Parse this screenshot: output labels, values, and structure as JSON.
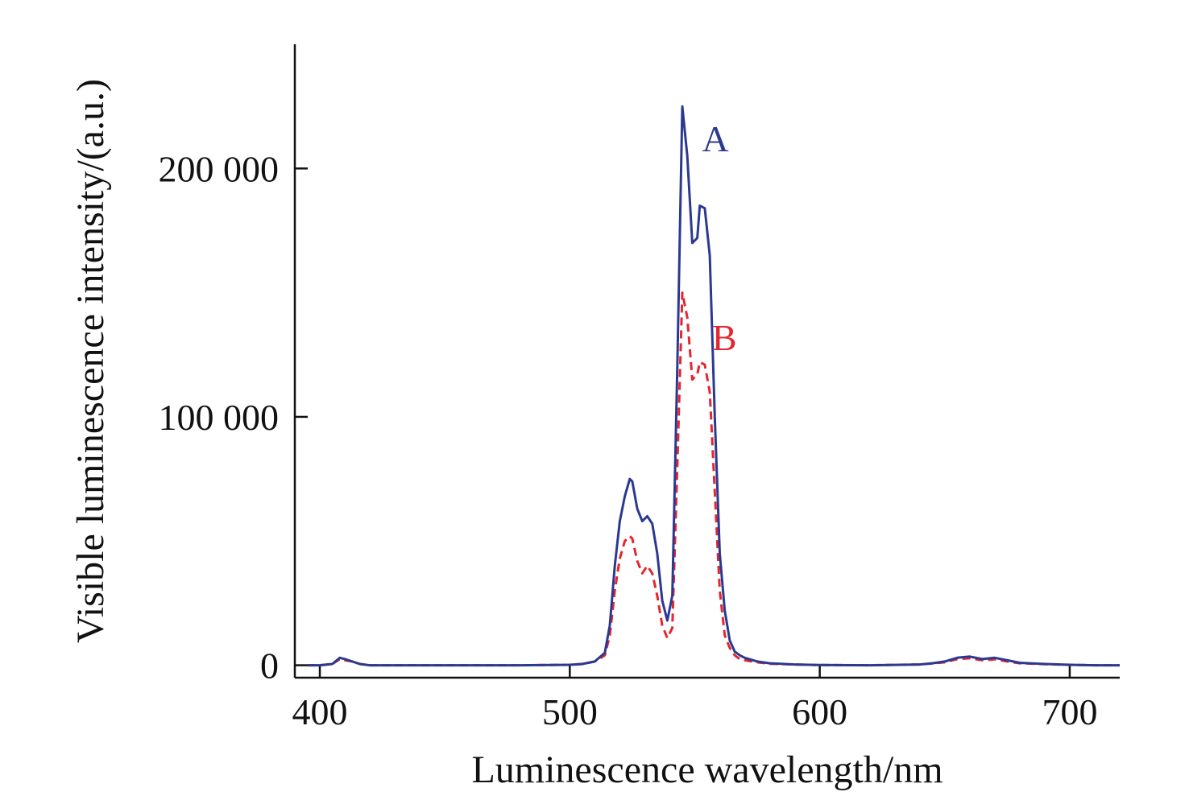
{
  "chart_data": {
    "type": "line",
    "xlabel": "Luminescence wavelength/nm",
    "ylabel": "Visible luminescence intensity/(a.u.)",
    "xlim": [
      390,
      720
    ],
    "ylim": [
      -5000,
      250000
    ],
    "x_ticks": [
      400,
      500,
      600,
      700
    ],
    "x_tick_labels": [
      "400",
      "500",
      "600",
      "700"
    ],
    "y_ticks": [
      0,
      100000,
      200000
    ],
    "y_tick_labels": [
      "0",
      "100 000",
      "200 000"
    ],
    "grid": false,
    "legend": "none",
    "series": [
      {
        "name": "A",
        "color": "#2b3990",
        "dash": "solid",
        "label_at": [
          540,
          205000
        ],
        "x": [
          395,
          400,
          405,
          408,
          410,
          413,
          416,
          420,
          430,
          450,
          480,
          500,
          505,
          510,
          514,
          516,
          518,
          520,
          522,
          524,
          525,
          527,
          529,
          531,
          533,
          535,
          537,
          539,
          541,
          543,
          545,
          547,
          549,
          551,
          552,
          554,
          556,
          558,
          560,
          562,
          564,
          566,
          568,
          570,
          575,
          580,
          590,
          600,
          620,
          640,
          645,
          650,
          655,
          660,
          665,
          670,
          675,
          680,
          690,
          700,
          710,
          720
        ],
        "y": [
          0,
          0,
          500,
          3000,
          2500,
          1500,
          500,
          0,
          0,
          0,
          0,
          200,
          500,
          1500,
          5000,
          16000,
          40000,
          58000,
          68000,
          75000,
          74000,
          63000,
          58000,
          60000,
          57000,
          45000,
          26000,
          18000,
          28000,
          120000,
          225000,
          205000,
          170000,
          172000,
          185000,
          184000,
          165000,
          100000,
          45000,
          22000,
          10000,
          5500,
          4000,
          3000,
          1500,
          800,
          300,
          100,
          0,
          300,
          800,
          1500,
          3000,
          3500,
          2500,
          3000,
          2000,
          1000,
          500,
          200,
          0,
          0
        ]
      },
      {
        "name": "B",
        "color": "#e3262f",
        "dash": "dashed",
        "label_at": [
          544,
          125000
        ],
        "x": [
          395,
          400,
          405,
          408,
          410,
          413,
          416,
          420,
          430,
          450,
          480,
          500,
          505,
          510,
          514,
          516,
          518,
          520,
          522,
          524,
          525,
          527,
          529,
          531,
          533,
          535,
          537,
          539,
          541,
          543,
          545,
          547,
          549,
          551,
          552,
          554,
          556,
          558,
          560,
          562,
          564,
          566,
          568,
          570,
          575,
          580,
          590,
          600,
          620,
          640,
          645,
          650,
          655,
          660,
          665,
          670,
          675,
          680,
          690,
          700,
          710,
          720
        ],
        "y": [
          0,
          0,
          500,
          2500,
          2000,
          1500,
          500,
          0,
          0,
          0,
          0,
          200,
          500,
          1500,
          4000,
          12000,
          30000,
          43000,
          50000,
          52000,
          51000,
          42000,
          37000,
          40000,
          37000,
          28000,
          16000,
          11000,
          15000,
          80000,
          150000,
          140000,
          115000,
          117000,
          122000,
          121000,
          110000,
          70000,
          30000,
          12000,
          7000,
          4000,
          2500,
          2000,
          1200,
          600,
          300,
          100,
          0,
          300,
          700,
          1200,
          2500,
          2800,
          2000,
          2400,
          1500,
          800,
          400,
          200,
          0,
          0
        ]
      }
    ]
  }
}
